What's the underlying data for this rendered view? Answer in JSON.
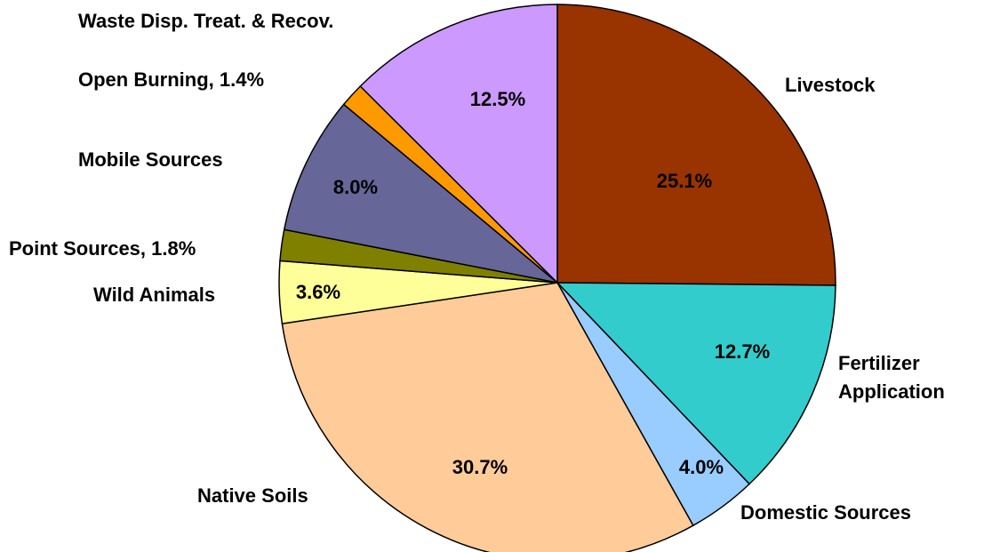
{
  "chart_data": {
    "type": "pie",
    "categories": [
      "Livestock",
      "Fertilizer Application",
      "Domestic Sources",
      "Native Soils",
      "Wild Animals",
      "Point Sources, 1.8%",
      "Mobile Sources",
      "Open Burning, 1.4%",
      "Waste Disp. Treat. & Recov."
    ],
    "values": [
      25.1,
      12.7,
      4.0,
      30.7,
      3.6,
      1.8,
      8.0,
      1.4,
      12.5
    ],
    "value_labels": [
      "25.1%",
      "12.7%",
      "4.0%",
      "30.7%",
      "3.6%",
      null,
      "8.0%",
      null,
      "12.5%"
    ],
    "colors": [
      "#993300",
      "#33cccc",
      "#99ccff",
      "#ffcc99",
      "#ffff99",
      "#808000",
      "#666699",
      "#ff9900",
      "#cc99ff"
    ]
  }
}
